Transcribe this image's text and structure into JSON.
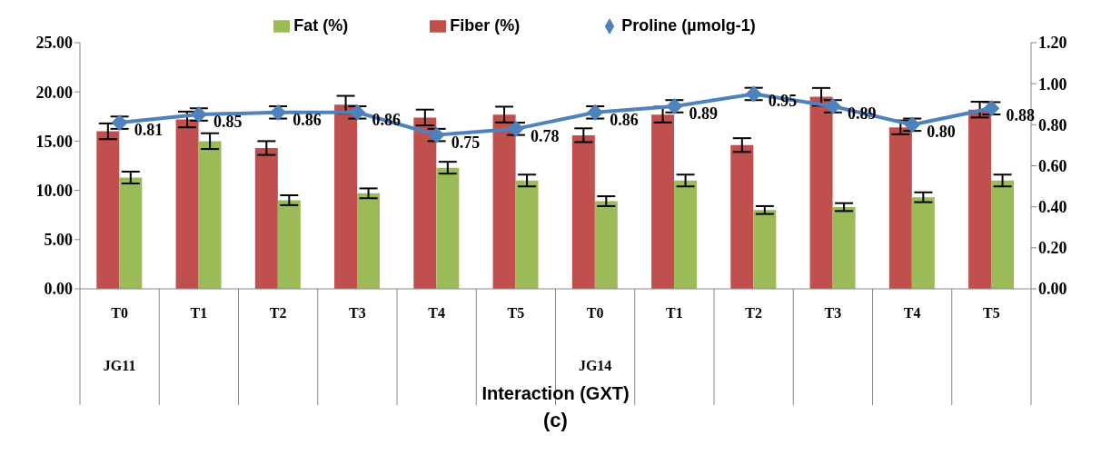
{
  "chart_data": {
    "type": "bar",
    "xlabel": "Interaction (GXT)",
    "categories": [
      "T0",
      "T1",
      "T2",
      "T3",
      "T4",
      "T5",
      "T0",
      "T1",
      "T2",
      "T3",
      "T4",
      "T5"
    ],
    "annotations": [
      "JG11",
      "JG14",
      "(c)"
    ],
    "series": [
      {
        "name": "Fiber (%)",
        "color": "#c0504d",
        "values": [
          16.0,
          17.2,
          14.3,
          18.7,
          17.4,
          17.7,
          15.6,
          17.7,
          14.6,
          19.5,
          16.4,
          18.2
        ],
        "errors": [
          0.8,
          0.8,
          0.7,
          0.9,
          0.8,
          0.8,
          0.7,
          0.8,
          0.7,
          0.9,
          0.7,
          0.8
        ]
      },
      {
        "name": "Fat (%)",
        "color": "#9bbb59",
        "values": [
          11.3,
          15.0,
          9.0,
          9.7,
          12.3,
          11.0,
          8.9,
          11.0,
          8.0,
          8.3,
          9.3,
          11.0
        ],
        "errors": [
          0.6,
          0.8,
          0.5,
          0.5,
          0.6,
          0.6,
          0.5,
          0.6,
          0.4,
          0.4,
          0.5,
          0.6
        ]
      },
      {
        "name": "Proline (µmolg-1)",
        "type": "line",
        "axis": "y2",
        "color": "#4f81bd",
        "values": [
          0.81,
          0.85,
          0.86,
          0.86,
          0.75,
          0.78,
          0.86,
          0.89,
          0.95,
          0.89,
          0.8,
          0.88
        ],
        "errors": [
          0.03,
          0.03,
          0.03,
          0.03,
          0.03,
          0.03,
          0.03,
          0.03,
          0.03,
          0.03,
          0.03,
          0.03
        ],
        "value_labels": [
          "0.81",
          "0.85",
          "0.86",
          "0.86",
          "0.75",
          "0.78",
          "0.86",
          "0.89",
          "0.95",
          "0.89",
          "0.80",
          "0.88"
        ]
      }
    ],
    "ylim": [
      0,
      25
    ],
    "yticks": [
      {
        "value": 0,
        "label": "0.00"
      },
      {
        "value": 5,
        "label": "5.00"
      },
      {
        "value": 10,
        "label": "10.00"
      },
      {
        "value": 15,
        "label": "15.00"
      },
      {
        "value": 20,
        "label": "20.00"
      },
      {
        "value": 25,
        "label": "25.00"
      }
    ],
    "y2lim": [
      0,
      1.2
    ],
    "y2ticks": [
      {
        "value": 0,
        "label": "0.00"
      },
      {
        "value": 0.2,
        "label": "0.20"
      },
      {
        "value": 0.4,
        "label": "0.40"
      },
      {
        "value": 0.6,
        "label": "0.60"
      },
      {
        "value": 0.8,
        "label": "0.80"
      },
      {
        "value": 1,
        "label": "1.00"
      },
      {
        "value": 1.2,
        "label": "1.20"
      }
    ],
    "legend": "top",
    "marker": "diamond",
    "line_style": "solid"
  }
}
